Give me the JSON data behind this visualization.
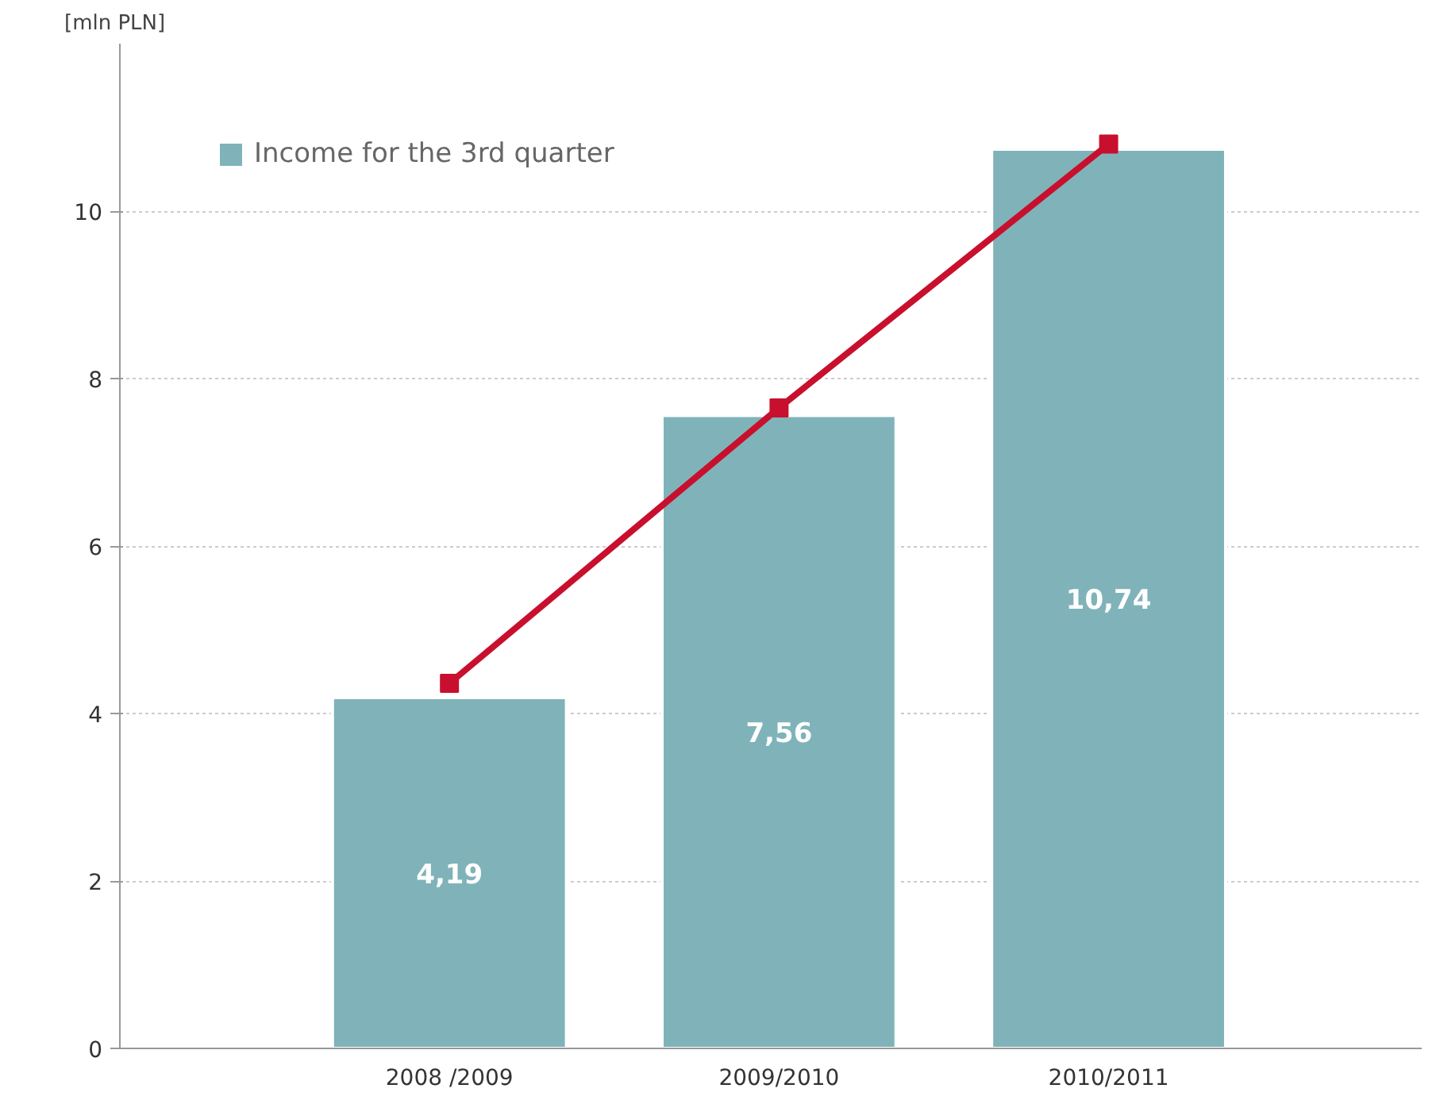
{
  "chart_data": {
    "type": "bar",
    "ylabel": "[mln PLN]",
    "categories": [
      "2008 /2009",
      "2009/2010",
      "2010/2011"
    ],
    "ylim": [
      0,
      12
    ],
    "yticks": [
      0,
      2,
      4,
      6,
      8,
      10
    ],
    "grid": "y",
    "legend": "top left",
    "series": [
      {
        "name": "Income for the 3rd quarter",
        "color": "#7fb3b9",
        "values": [
          4.19,
          7.56,
          10.74
        ],
        "value_labels": [
          "4,19",
          "7,56",
          "10,74"
        ]
      },
      {
        "type": "line",
        "color": "#c8102e",
        "values": [
          4.36,
          7.65,
          10.8
        ],
        "marker": "square"
      }
    ]
  }
}
